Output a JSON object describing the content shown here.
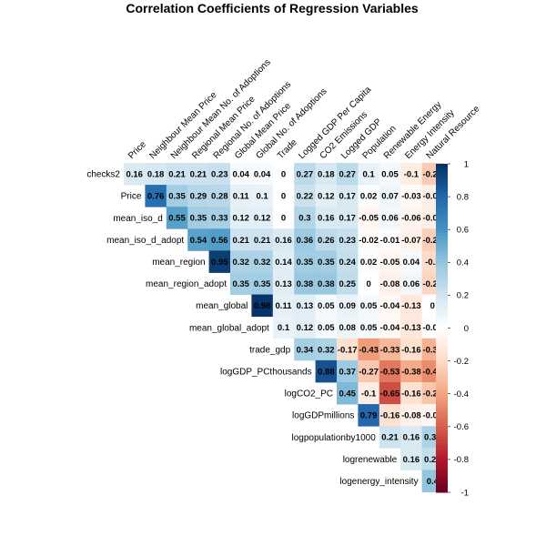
{
  "chart_data": {
    "type": "heatmap",
    "title": "Correlation Coefficients of Regression Variables",
    "layout": "upper-triangle",
    "row_labels": [
      "checks2",
      "Price",
      "mean_iso_d",
      "mean_iso_d_adopt",
      "mean_region",
      "mean_region_adopt",
      "mean_global",
      "mean_global_adopt",
      "trade_gdp",
      "logGDP_PCthousands",
      "logCO2_PC",
      "logGDPmillions",
      "logpopulationby1000",
      "logrenewable",
      "logenergy_intensity"
    ],
    "column_labels": [
      "Price",
      "Neighbour Mean Price",
      "Neighbour Mean No. of Adoptions",
      "Regional Mean Price",
      "Regional No. of Adoptions",
      "Global Mean Price",
      "Global No. of Adoptions",
      "Trade",
      "Logged GDP Per Capita",
      "CO2 Emissions",
      "Logged GDP",
      "Population",
      "Renewable Energy",
      "Energy Intensity",
      "Natural Resource"
    ],
    "values": [
      [
        0.16,
        0.18,
        0.21,
        0.21,
        0.23,
        0.04,
        0.04,
        0,
        0.27,
        0.18,
        0.27,
        0.1,
        0.05,
        -0.1,
        -0.26
      ],
      [
        0.76,
        0.35,
        0.29,
        0.28,
        0.11,
        0.1,
        0,
        0.22,
        0.12,
        0.17,
        0.02,
        0.07,
        -0.03,
        -0.09
      ],
      [
        0.55,
        0.35,
        0.33,
        0.12,
        0.12,
        0,
        0.3,
        0.16,
        0.17,
        -0.05,
        0.06,
        -0.06,
        -0.09
      ],
      [
        0.54,
        0.56,
        0.21,
        0.21,
        0.16,
        0.36,
        0.26,
        0.23,
        -0.02,
        -0.01,
        -0.07,
        -0.24
      ],
      [
        0.95,
        0.32,
        0.32,
        0.14,
        0.35,
        0.35,
        0.24,
        0.02,
        -0.05,
        0.04,
        -0.2
      ],
      [
        0.35,
        0.35,
        0.13,
        0.38,
        0.38,
        0.25,
        0,
        -0.08,
        0.06,
        -0.22
      ],
      [
        0.98,
        0.11,
        0.13,
        0.05,
        0.09,
        0.05,
        -0.04,
        -0.13,
        0
      ],
      [
        0.1,
        0.12,
        0.05,
        0.08,
        0.05,
        -0.04,
        -0.13,
        -0.01
      ],
      [
        0.34,
        0.32,
        -0.17,
        -0.43,
        -0.33,
        -0.16,
        -0.35
      ],
      [
        0.88,
        0.37,
        -0.27,
        -0.53,
        -0.38,
        -0.47
      ],
      [
        0.45,
        -0.1,
        -0.65,
        -0.16,
        -0.28
      ],
      [
        0.79,
        -0.16,
        -0.08,
        -0.05
      ],
      [
        0.21,
        0.16,
        0.32
      ],
      [
        0.16,
        0.24
      ],
      [
        0.4
      ]
    ],
    "colorbar": {
      "range": [
        -1,
        1
      ],
      "ticks": [
        "1",
        "0.8",
        "0.6",
        "0.4",
        "0.2",
        "0",
        "-0.2",
        "-0.4",
        "-0.6",
        "-0.8",
        "-1"
      ],
      "colors": {
        "negative": "#67001F",
        "mid": "#FFFFFF",
        "positive": "#053061"
      }
    }
  }
}
